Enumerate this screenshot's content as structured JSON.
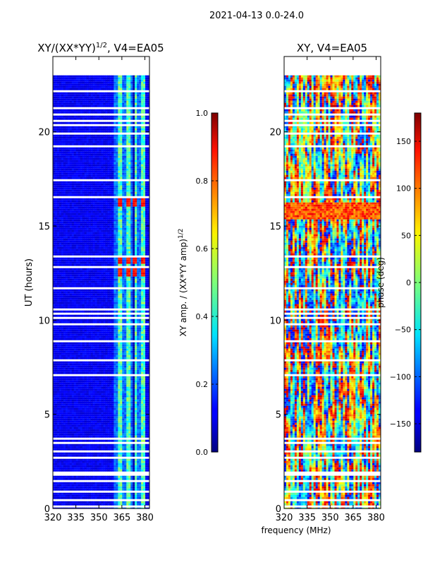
{
  "figure_title": "2021-04-13 0.0-24.0",
  "shared_xlabel": "frequency (MHz)",
  "chart_data": [
    {
      "type": "heatmap",
      "title": "XY/(XX*YY)",
      "title_exponent": "1/2",
      "title_suffix": ", V4=EA05",
      "xlabel": "",
      "ylabel": "UT (hours)",
      "xlim": [
        320,
        383
      ],
      "ylim": [
        0,
        24
      ],
      "xticks": [
        320,
        335,
        350,
        365,
        380
      ],
      "yticks": [
        0,
        5,
        10,
        15,
        20
      ],
      "data_range_hours": [
        0,
        23
      ],
      "hot_band_mhz": [
        360,
        380
      ],
      "hot_spot_hours": [
        16.3,
        13.3,
        12.6
      ],
      "colorbar": {
        "label": "XY amp. / (XX*YY amp)",
        "label_exponent": "1/2",
        "range": [
          0.0,
          1.0
        ],
        "ticks": [
          "0.0",
          "0.2",
          "0.4",
          "0.6",
          "0.8",
          "1.0"
        ]
      }
    },
    {
      "type": "heatmap",
      "title": "XY, V4=EA05",
      "xlabel": "",
      "ylabel": "",
      "xlim": [
        320,
        383
      ],
      "ylim": [
        0,
        24
      ],
      "xticks": [
        320,
        335,
        350,
        365,
        380
      ],
      "yticks": [
        0,
        5,
        10,
        15,
        20
      ],
      "data_range_hours": [
        0,
        23
      ],
      "colorbar": {
        "label": "phase (deg)",
        "range": [
          -180,
          180
        ],
        "ticks": [
          "−150",
          "−100",
          "−50",
          "0",
          "50",
          "100",
          "150"
        ]
      }
    }
  ]
}
